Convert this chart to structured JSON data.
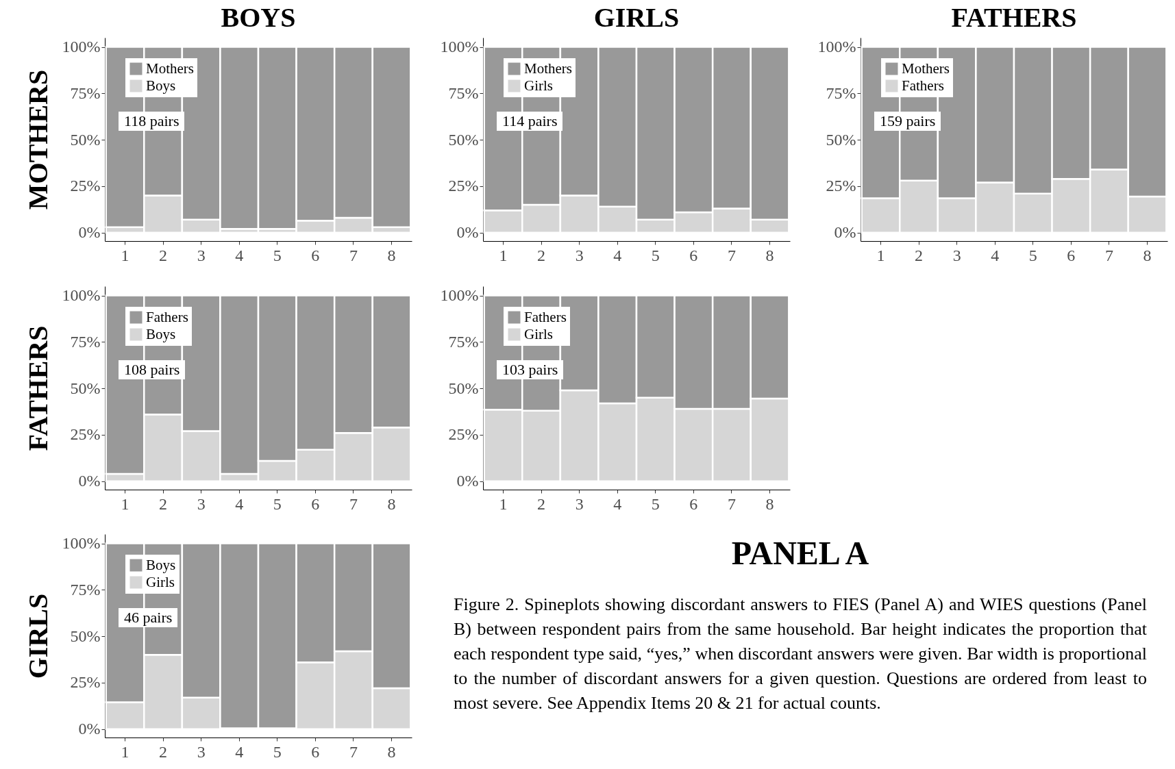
{
  "chart_data": [
    {
      "type": "bar",
      "title": "BOYS",
      "ylabel": "MOTHERS",
      "stacked": true,
      "legend": "top left",
      "annotations": [
        "118 pairs"
      ],
      "ylim": [
        -4.5,
        105
      ],
      "categories": [
        "1",
        "2",
        "3",
        "4",
        "5",
        "6",
        "7",
        "8"
      ],
      "yticks": [
        {
          "value": 0,
          "label": "0%"
        },
        {
          "value": 25,
          "label": "25%"
        },
        {
          "value": 50,
          "label": "50%"
        },
        {
          "value": 75,
          "label": "75%"
        },
        {
          "value": 100,
          "label": "100%"
        }
      ],
      "series": [
        {
          "name": "Boys",
          "color": "#d6d6d6",
          "values": [
            3,
            20,
            7,
            2,
            2,
            6.5,
            8,
            3
          ]
        },
        {
          "name": "Mothers",
          "color": "#999999",
          "values": [
            97,
            80,
            93,
            98,
            98,
            93.5,
            92,
            97
          ]
        }
      ]
    },
    {
      "type": "bar",
      "title": "GIRLS",
      "stacked": true,
      "legend": "top left",
      "annotations": [
        "114 pairs"
      ],
      "ylim": [
        -4.5,
        105
      ],
      "categories": [
        "1",
        "2",
        "3",
        "4",
        "5",
        "6",
        "7",
        "8"
      ],
      "yticks": [
        {
          "value": 0,
          "label": "0%"
        },
        {
          "value": 25,
          "label": "25%"
        },
        {
          "value": 50,
          "label": "50%"
        },
        {
          "value": 75,
          "label": "75%"
        },
        {
          "value": 100,
          "label": "100%"
        }
      ],
      "series": [
        {
          "name": "Girls",
          "color": "#d6d6d6",
          "values": [
            12,
            15,
            20,
            14,
            7,
            11,
            13,
            7
          ]
        },
        {
          "name": "Mothers",
          "color": "#999999",
          "values": [
            88,
            85,
            80,
            86,
            93,
            89,
            87,
            93
          ]
        }
      ]
    },
    {
      "type": "bar",
      "title": "FATHERS",
      "stacked": true,
      "legend": "top left",
      "annotations": [
        "159 pairs"
      ],
      "ylim": [
        -4.5,
        105
      ],
      "categories": [
        "1",
        "2",
        "3",
        "4",
        "5",
        "6",
        "7",
        "8"
      ],
      "yticks": [
        {
          "value": 0,
          "label": "0%"
        },
        {
          "value": 25,
          "label": "25%"
        },
        {
          "value": 50,
          "label": "50%"
        },
        {
          "value": 75,
          "label": "75%"
        },
        {
          "value": 100,
          "label": "100%"
        }
      ],
      "series": [
        {
          "name": "Fathers",
          "color": "#d6d6d6",
          "values": [
            18.5,
            28,
            18.5,
            27,
            21,
            29,
            34,
            19.5
          ]
        },
        {
          "name": "Mothers",
          "color": "#999999",
          "values": [
            81.5,
            72,
            81.5,
            73,
            79,
            71,
            66,
            80.5
          ]
        }
      ]
    },
    {
      "type": "bar",
      "ylabel": "FATHERS",
      "stacked": true,
      "legend": "top left",
      "annotations": [
        "108 pairs"
      ],
      "ylim": [
        -4.5,
        105
      ],
      "categories": [
        "1",
        "2",
        "3",
        "4",
        "5",
        "6",
        "7",
        "8"
      ],
      "yticks": [
        {
          "value": 0,
          "label": "0%"
        },
        {
          "value": 25,
          "label": "25%"
        },
        {
          "value": 50,
          "label": "50%"
        },
        {
          "value": 75,
          "label": "75%"
        },
        {
          "value": 100,
          "label": "100%"
        }
      ],
      "series": [
        {
          "name": "Boys",
          "color": "#d6d6d6",
          "values": [
            4,
            36,
            27,
            4,
            11,
            17,
            26,
            29
          ]
        },
        {
          "name": "Fathers",
          "color": "#999999",
          "values": [
            96,
            64,
            73,
            96,
            89,
            83,
            74,
            71
          ]
        }
      ]
    },
    {
      "type": "bar",
      "stacked": true,
      "legend": "top left",
      "annotations": [
        "103 pairs"
      ],
      "ylim": [
        -4.5,
        105
      ],
      "categories": [
        "1",
        "2",
        "3",
        "4",
        "5",
        "6",
        "7",
        "8"
      ],
      "yticks": [
        {
          "value": 0,
          "label": "0%"
        },
        {
          "value": 25,
          "label": "25%"
        },
        {
          "value": 50,
          "label": "50%"
        },
        {
          "value": 75,
          "label": "75%"
        },
        {
          "value": 100,
          "label": "100%"
        }
      ],
      "series": [
        {
          "name": "Girls",
          "color": "#d6d6d6",
          "values": [
            38.5,
            38,
            49,
            42,
            45,
            39,
            39,
            44.5
          ]
        },
        {
          "name": "Fathers",
          "color": "#999999",
          "values": [
            61.5,
            62,
            51,
            58,
            55,
            61,
            61,
            55.5
          ]
        }
      ]
    },
    {
      "type": "bar",
      "ylabel": "GIRLS",
      "stacked": true,
      "legend": "top left",
      "annotations": [
        "46 pairs"
      ],
      "ylim": [
        -4.5,
        105
      ],
      "categories": [
        "1",
        "2",
        "3",
        "4",
        "5",
        "6",
        "7",
        "8"
      ],
      "yticks": [
        {
          "value": 0,
          "label": "0%"
        },
        {
          "value": 25,
          "label": "25%"
        },
        {
          "value": 50,
          "label": "50%"
        },
        {
          "value": 75,
          "label": "75%"
        },
        {
          "value": 100,
          "label": "100%"
        }
      ],
      "series": [
        {
          "name": "Girls",
          "color": "#d6d6d6",
          "values": [
            14.5,
            40,
            17,
            0.5,
            0.5,
            36,
            42,
            22
          ]
        },
        {
          "name": "Boys",
          "color": "#999999",
          "values": [
            85.5,
            60,
            83,
            99.5,
            99.5,
            64,
            58,
            78
          ]
        }
      ]
    },
    {
      "type": "other",
      "title": "PANEL A",
      "annotations": [
        "Figure 2. Spineplots showing discordant answers to FIES (Panel A) and WIES questions (Panel B) between respondent pairs from the same household. Bar height indicates the proportion that each respondent type said, “yes,” when discordant answers were given. Bar width is proportional to the number of discordant answers for a given question. Questions are ordered from least to most severe. See Appendix Items 20 & 21 for actual counts."
      ]
    }
  ]
}
